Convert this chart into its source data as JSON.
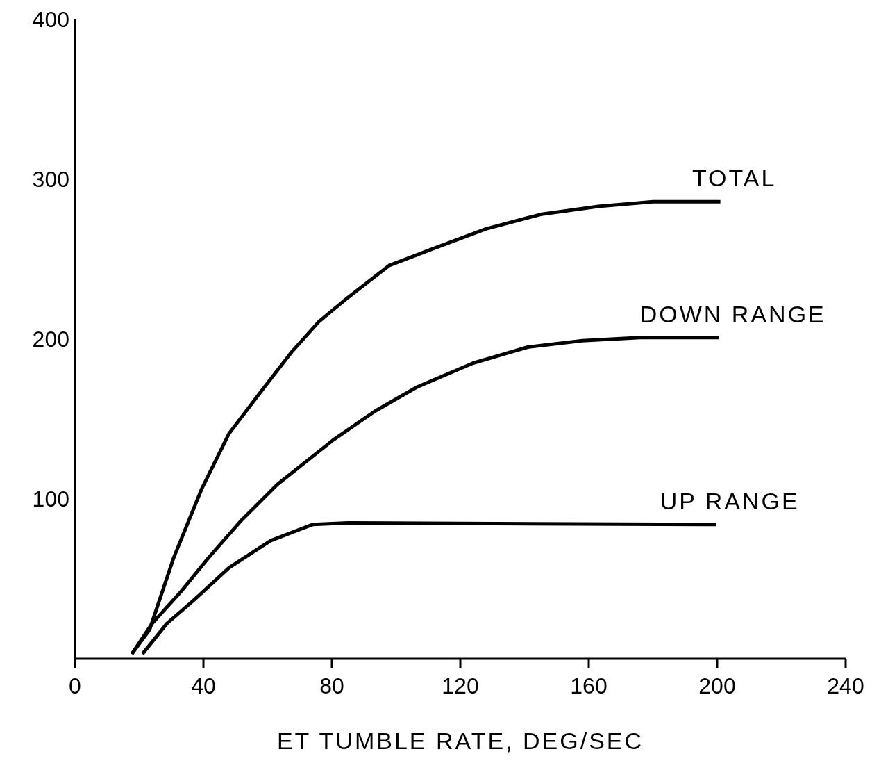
{
  "chart_data": {
    "type": "line",
    "xlabel": "ET TUMBLE RATE, DEG/SEC",
    "xlim": [
      0,
      240
    ],
    "xticks": [
      0,
      40,
      80,
      120,
      160,
      200,
      240
    ],
    "ylim": [
      0,
      400
    ],
    "yticks": [
      100,
      200,
      300,
      400
    ],
    "grid": false,
    "legend": false,
    "marker": "none",
    "line_style": "solid",
    "series": [
      {
        "name": "TOTAL",
        "color": "#000000",
        "x": [
          17.7,
          23.2,
          30.7,
          39.4,
          48,
          59,
          67.5,
          76,
          85,
          97.8,
          110.8,
          128,
          145,
          163,
          180,
          201
        ],
        "values": [
          3,
          18,
          63,
          106,
          141,
          170,
          192,
          211,
          226,
          246,
          256,
          269,
          278,
          283,
          286,
          286
        ]
      },
      {
        "name": "DOWN RANGE",
        "color": "#000000",
        "x": [
          17.7,
          24,
          33,
          41.5,
          52,
          63,
          80.5,
          93.5,
          106.5,
          124,
          141,
          158,
          176,
          200.6
        ],
        "values": [
          3,
          22,
          42,
          63,
          87,
          109,
          137,
          155,
          170,
          185,
          195,
          199,
          201,
          201
        ]
      },
      {
        "name": "UP RANGE",
        "color": "#000000",
        "x": [
          21,
          28.6,
          37.2,
          48,
          61,
          74,
          85,
          199.6
        ],
        "values": [
          3,
          22,
          37,
          57,
          74,
          84,
          85,
          84
        ]
      }
    ]
  }
}
